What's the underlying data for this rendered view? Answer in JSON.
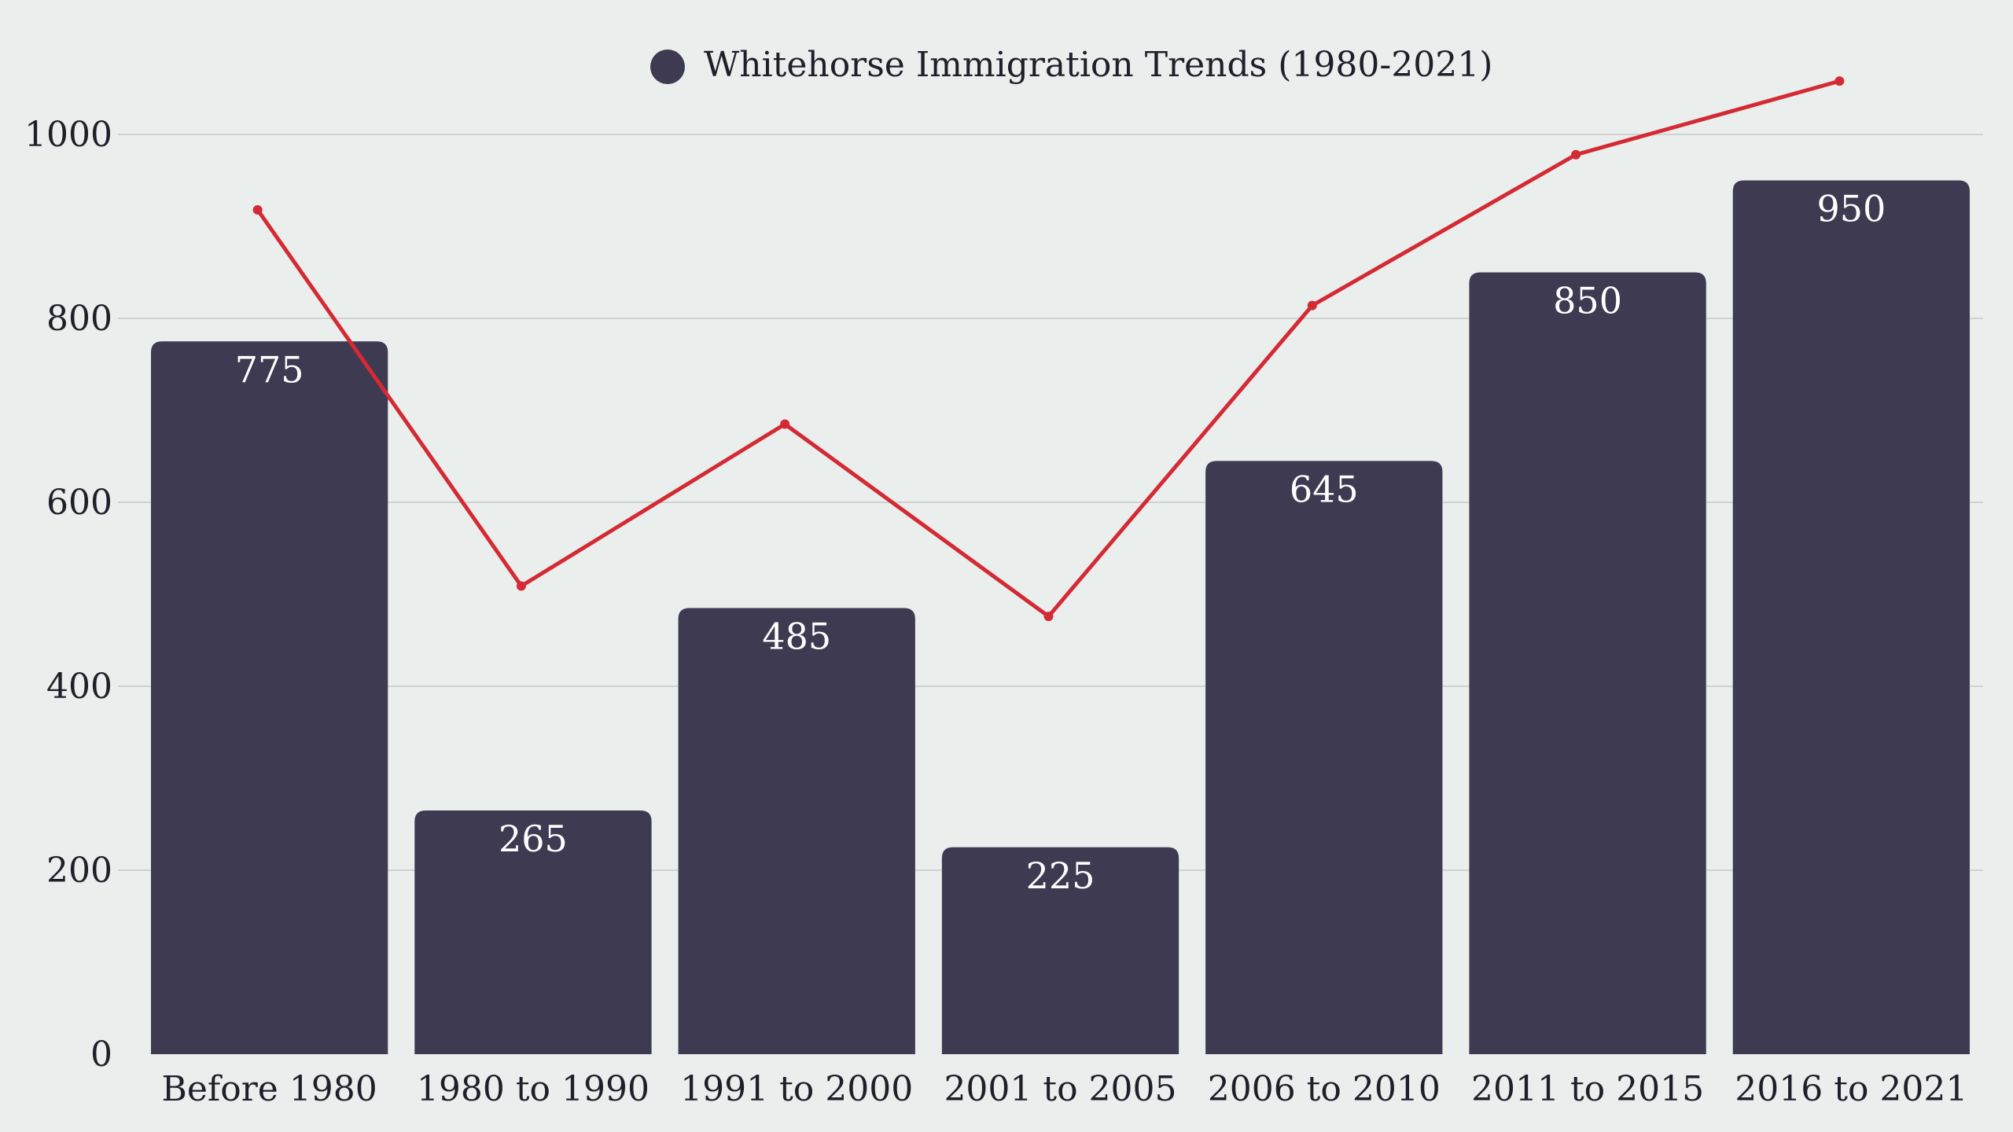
{
  "chart_data": {
    "type": "bar",
    "legend": {
      "position": "top-center",
      "entries": [
        {
          "name": "Whitehorse Immigration Trends (1980-2021)",
          "color": "#3d3a51"
        }
      ]
    },
    "categories": [
      "Before 1980",
      "1980 to 1990",
      "1991 to 2000",
      "2001 to 2005",
      "2006 to 2010",
      "2011 to 2015",
      "2016 to 2021"
    ],
    "series": [
      {
        "name": "Whitehorse Immigration Trends (1980-2021)",
        "type": "bar",
        "color": "#3d3a51",
        "values": [
          775,
          265,
          485,
          225,
          645,
          850,
          950
        ],
        "data_labels": [
          "775",
          "265",
          "485",
          "225",
          "645",
          "850",
          "950"
        ]
      },
      {
        "type": "line",
        "color": "#d42a34",
        "values": [
          918,
          509,
          685,
          476,
          814,
          978,
          1058
        ]
      }
    ],
    "y_axis": {
      "ylim": [
        0,
        1000
      ],
      "ticks": [
        0,
        200,
        400,
        600,
        800,
        1000
      ],
      "tick_labels": [
        "0",
        "200",
        "400",
        "600",
        "800",
        "1000"
      ]
    },
    "grid": true,
    "background": "#eaeeec",
    "grid_color": "#cfd2d1"
  }
}
